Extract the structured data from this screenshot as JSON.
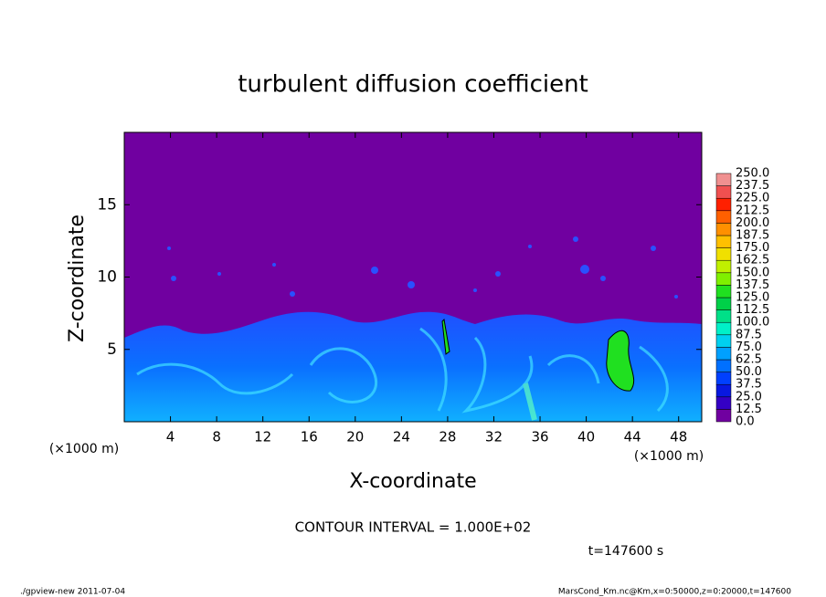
{
  "chart_data": {
    "type": "contour",
    "title": "turbulent diffusion coefficient",
    "x_label": "X-coordinate",
    "y_label": "Z-coordinate",
    "y_unit": "(×1000 m)",
    "x_unit": "(×1000 m)",
    "xlim": [
      0,
      50
    ],
    "xticks": [
      4,
      8,
      12,
      16,
      20,
      24,
      28,
      32,
      36,
      40,
      44,
      48
    ],
    "ylim": [
      0,
      20
    ],
    "yticks": [
      5,
      10,
      15
    ],
    "colorbar": {
      "levels": [
        {
          "value": 0,
          "label": "0.0"
        },
        {
          "value": 12.5,
          "label": "12.5"
        },
        {
          "value": 25,
          "label": "25.0"
        },
        {
          "value": 37.5,
          "label": "37.5"
        },
        {
          "value": 50,
          "label": "50.0"
        },
        {
          "value": 62.5,
          "label": "62.5"
        },
        {
          "value": 75,
          "label": "75.0"
        },
        {
          "value": 87.5,
          "label": "87.5"
        },
        {
          "value": 100,
          "label": "100.0"
        },
        {
          "value": 112.5,
          "label": "112.5"
        },
        {
          "value": 125,
          "label": "125.0"
        },
        {
          "value": 137.5,
          "label": "137.5"
        },
        {
          "value": 150,
          "label": "150.0"
        },
        {
          "value": 162.5,
          "label": "162.5"
        },
        {
          "value": 175,
          "label": "175.0"
        },
        {
          "value": 187.5,
          "label": "187.5"
        },
        {
          "value": 200,
          "label": "200.0"
        },
        {
          "value": 212.5,
          "label": "212.5"
        },
        {
          "value": 225,
          "label": "225.0"
        },
        {
          "value": 237.5,
          "label": "237.5"
        },
        {
          "value": 250,
          "label": "250.0"
        }
      ],
      "colors": [
        "#7000a0",
        "#3400c4",
        "#0818e0",
        "#0040ff",
        "#0070ff",
        "#00a0ff",
        "#00d0f0",
        "#00f0c8",
        "#00e088",
        "#00d048",
        "#20e020",
        "#80f000",
        "#c0f000",
        "#f0e000",
        "#ffc000",
        "#ff9000",
        "#ff6000",
        "#ff2000",
        "#f05050",
        "#f09090"
      ]
    },
    "annotations": [
      "CONTOUR INTERVAL = 1.000E+02",
      "t=147600 s"
    ],
    "footer_left": "./gpview-new  2011-07-04",
    "footer_right": "MarsCond_Km.nc@Km,x=0:50000,z=0:20000,t=147600"
  }
}
